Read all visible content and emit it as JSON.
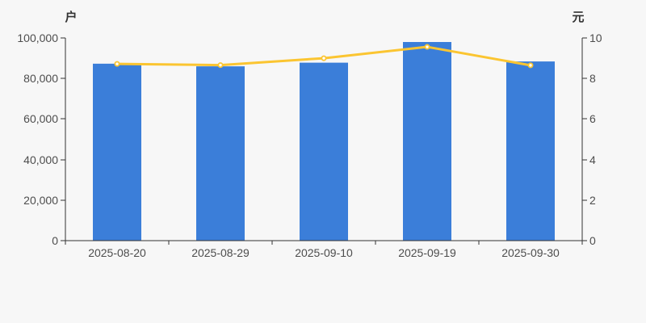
{
  "page": {
    "background_color": "#f7f7f7"
  },
  "chart_data": {
    "type": "bar+line",
    "categories": [
      "2025-08-20",
      "2025-08-29",
      "2025-09-10",
      "2025-09-19",
      "2025-09-30"
    ],
    "series": [
      {
        "name": "bar",
        "type": "bar",
        "axis": "left",
        "color": "#3b7ed9",
        "values": [
          87300,
          86000,
          87800,
          98000,
          88400
        ]
      },
      {
        "name": "line",
        "type": "line",
        "axis": "right",
        "color": "#fbc531",
        "marker_fill": "#ffffff",
        "values": [
          8.72,
          8.66,
          9.0,
          9.56,
          8.65
        ]
      }
    ],
    "left_axis": {
      "label": "户",
      "min": 0,
      "max": 100000,
      "ticks": [
        "0",
        "20,000",
        "40,000",
        "60,000",
        "80,000",
        "100,000"
      ]
    },
    "right_axis": {
      "label": "元",
      "min": 0,
      "max": 10,
      "ticks": [
        "0",
        "2",
        "4",
        "6",
        "8",
        "10"
      ]
    },
    "grid": false,
    "legend": false,
    "title": "",
    "axis_color": "#333333",
    "tick_label_color": "#4d4d4d"
  }
}
